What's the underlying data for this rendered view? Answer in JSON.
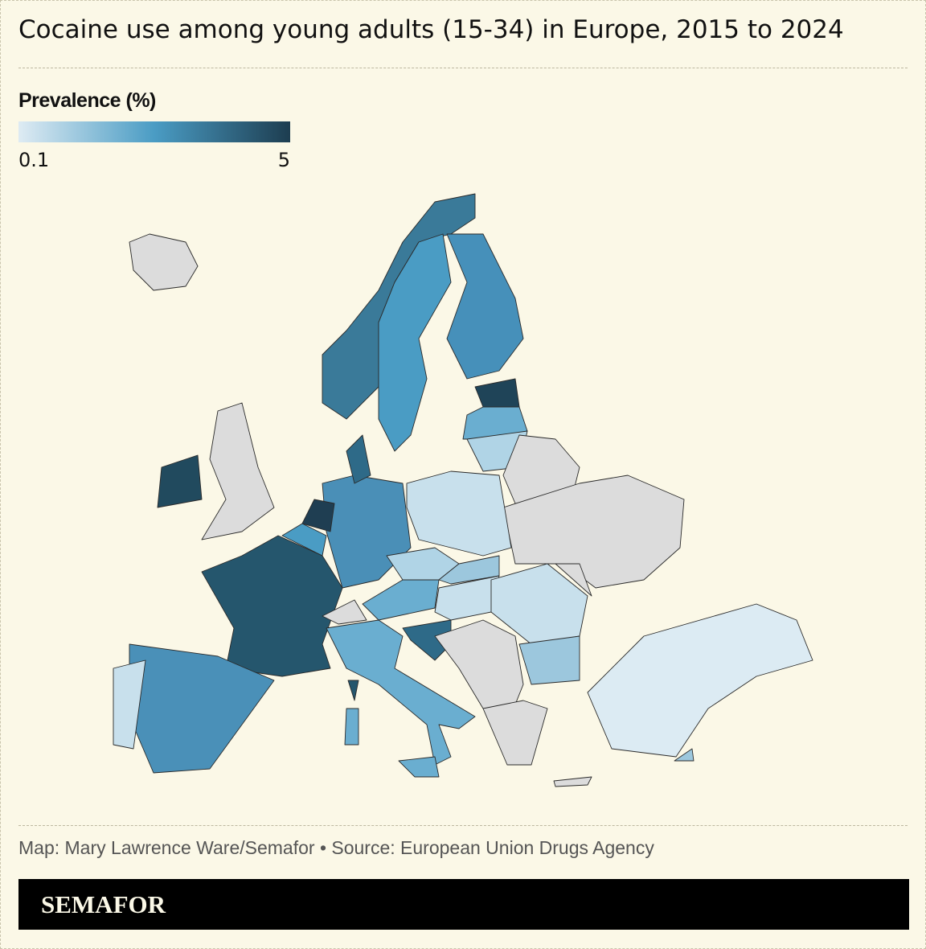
{
  "header": {
    "title": "Cocaine use among young adults (15-34) in Europe, 2015 to 2024"
  },
  "legend": {
    "title": "Prevalence (%)",
    "min": 0.1,
    "max": 5,
    "colors": [
      "#deebf3",
      "#4a9cc4",
      "#1d3d50"
    ]
  },
  "footer": {
    "credit": "Map: Mary Lawrence Ware/Semafor • Source: European Union Drugs Agency",
    "brand": "SEMAFOR"
  }
}
